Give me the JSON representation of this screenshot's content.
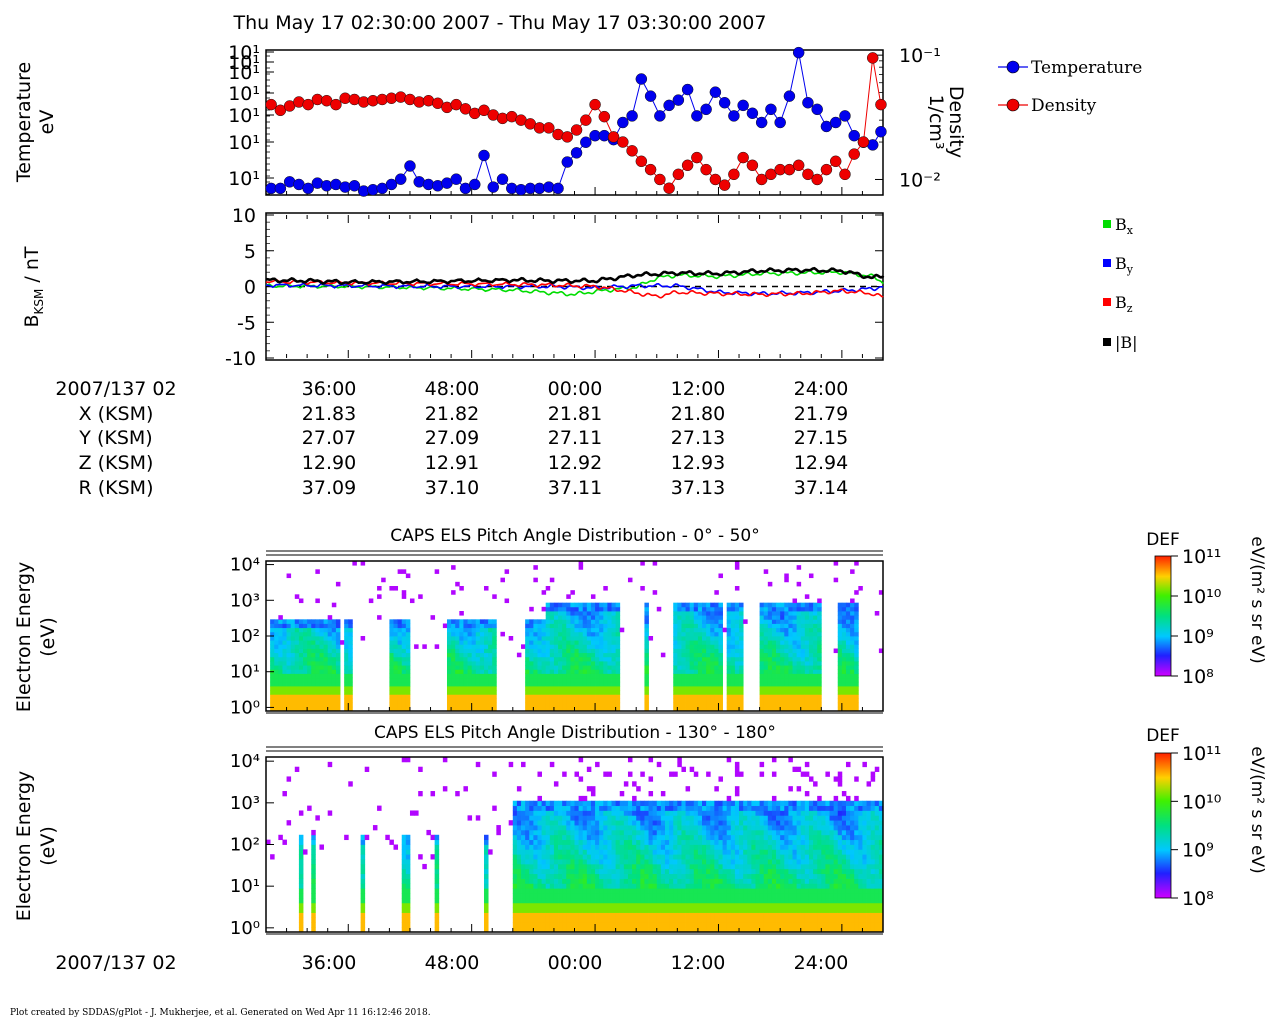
{
  "header": {
    "title": "Thu May 17 02:30:00 2007 - Thu May 17 03:30:00 2007"
  },
  "footer": {
    "credit": "Plot created by SDDAS/gPlot - J. Mukherjee, et al.  Generated on Wed Apr 11 16:12:46 2018."
  },
  "colors": {
    "temperature": "#0000ee",
    "density": "#ee0000",
    "bx": "#00dd00",
    "by": "#0000ff",
    "bz": "#ff0000",
    "bmag": "#000000"
  },
  "chart_data": [
    {
      "id": "moments",
      "type": "line",
      "ylabel_left": [
        "Temperature",
        "eV"
      ],
      "ylabel_right": [
        "Density",
        "1/cm³"
      ],
      "left_ticks": [
        "10¹",
        "10¹",
        "10¹",
        "10¹",
        "10¹",
        "10¹",
        "10¹"
      ],
      "right_ticks": [
        "10⁻¹",
        "10⁻²"
      ],
      "xlim_min": [
        -32,
        28
      ],
      "ylim_temperature": [
        0,
        110
      ],
      "ylim_density": [
        0.0075,
        0.11
      ],
      "series": [
        {
          "name": "Temperature",
          "axis": "left",
          "marker": "circle",
          "x": [
            -31.5,
            -30.6,
            -29.7,
            -28.8,
            -27.9,
            -27.0,
            -26.1,
            -25.2,
            -24.3,
            -23.4,
            -22.5,
            -21.6,
            -20.7,
            -19.8,
            -18.9,
            -18.0,
            -17.1,
            -16.2,
            -15.3,
            -14.4,
            -13.5,
            -12.6,
            -11.7,
            -10.8,
            -9.9,
            -9.0,
            -8.1,
            -7.2,
            -6.3,
            -5.4,
            -4.5,
            -3.6,
            -2.7,
            -1.8,
            -0.9,
            0.0,
            0.9,
            1.8,
            2.7,
            3.6,
            4.5,
            5.4,
            6.3,
            7.2,
            8.1,
            9.0,
            9.9,
            10.8,
            11.7,
            12.6,
            13.5,
            14.4,
            15.3,
            16.2,
            17.1,
            18.0,
            18.9,
            19.8,
            20.7,
            21.6,
            22.5,
            23.4,
            24.3,
            25.2,
            26.1,
            27.0,
            27.8
          ],
          "y": [
            5,
            5,
            10,
            8,
            5,
            9,
            7,
            8,
            6,
            7,
            3,
            4,
            5,
            8,
            12,
            22,
            10,
            8,
            7,
            9,
            12,
            5,
            8,
            30,
            6,
            12,
            5,
            4,
            5,
            5,
            6,
            5,
            25,
            32,
            40,
            45,
            45,
            42,
            55,
            60,
            88,
            75,
            60,
            68,
            72,
            80,
            60,
            65,
            78,
            70,
            60,
            68,
            62,
            55,
            65,
            55,
            75,
            108,
            70,
            65,
            52,
            55,
            60,
            45,
            40,
            38,
            48
          ]
        },
        {
          "name": "Density",
          "axis": "right",
          "marker": "circle",
          "x": [
            -31.5,
            -30.6,
            -29.7,
            -28.8,
            -27.9,
            -27.0,
            -26.1,
            -25.2,
            -24.3,
            -23.4,
            -22.5,
            -21.6,
            -20.7,
            -19.8,
            -18.9,
            -18.0,
            -17.1,
            -16.2,
            -15.3,
            -14.4,
            -13.5,
            -12.6,
            -11.7,
            -10.8,
            -9.9,
            -9.0,
            -8.1,
            -7.2,
            -6.3,
            -5.4,
            -4.5,
            -3.6,
            -2.7,
            -1.8,
            -0.9,
            0.0,
            0.9,
            1.8,
            2.7,
            3.6,
            4.5,
            5.4,
            6.3,
            7.2,
            8.1,
            9.0,
            9.9,
            10.8,
            11.7,
            12.6,
            13.5,
            14.4,
            15.3,
            16.2,
            17.1,
            18.0,
            18.9,
            19.8,
            20.7,
            21.6,
            22.5,
            23.4,
            24.3,
            25.2,
            26.1,
            27.0,
            27.8
          ],
          "y": [
            0.04,
            0.036,
            0.039,
            0.042,
            0.04,
            0.044,
            0.043,
            0.04,
            0.045,
            0.044,
            0.042,
            0.043,
            0.044,
            0.045,
            0.046,
            0.044,
            0.042,
            0.043,
            0.041,
            0.038,
            0.04,
            0.037,
            0.034,
            0.036,
            0.033,
            0.031,
            0.032,
            0.03,
            0.028,
            0.026,
            0.026,
            0.023,
            0.022,
            0.025,
            0.03,
            0.04,
            0.032,
            0.022,
            0.02,
            0.017,
            0.014,
            0.012,
            0.01,
            0.0085,
            0.011,
            0.013,
            0.015,
            0.012,
            0.01,
            0.009,
            0.011,
            0.015,
            0.013,
            0.01,
            0.011,
            0.012,
            0.012,
            0.013,
            0.011,
            0.01,
            0.012,
            0.014,
            0.011,
            0.016,
            0.02,
            0.095,
            0.04
          ]
        }
      ]
    },
    {
      "id": "bfield",
      "type": "line",
      "ylabel": "B_KSM / nT",
      "ylim": [
        -10,
        10
      ],
      "yticks": [
        "10",
        "5",
        "0",
        "-5",
        "-10"
      ],
      "xlim_min": [
        -32,
        28
      ],
      "series": [
        {
          "name": "Bx",
          "x": [
            -32,
            -24,
            -16,
            -8,
            -4,
            -2,
            0,
            4,
            6,
            8,
            12,
            16,
            20,
            24,
            27,
            28
          ],
          "y": [
            0.1,
            0.0,
            -0.2,
            -0.5,
            -0.9,
            -1.1,
            -0.7,
            -0.1,
            1.2,
            1.6,
            1.4,
            1.8,
            1.9,
            2.0,
            1.4,
            0.6
          ]
        },
        {
          "name": "By",
          "x": [
            -32,
            -24,
            -16,
            -8,
            -4,
            0,
            4,
            8,
            12,
            16,
            20,
            24,
            27,
            28
          ],
          "y": [
            0.2,
            0.1,
            0.0,
            0.0,
            0.0,
            -0.2,
            0.1,
            0.1,
            -0.8,
            -1.0,
            -0.9,
            -0.6,
            -0.3,
            0.0
          ]
        },
        {
          "name": "Bz",
          "x": [
            -32,
            -24,
            -16,
            -8,
            -4,
            0,
            2,
            4,
            6,
            8,
            12,
            16,
            20,
            24,
            27,
            28
          ],
          "y": [
            0.7,
            0.5,
            0.4,
            0.3,
            0.2,
            0.0,
            -0.4,
            -0.9,
            -1.4,
            -0.8,
            -1.0,
            -1.1,
            -1.0,
            -0.6,
            -1.0,
            -1.5
          ]
        },
        {
          "name": "|B|",
          "x": [
            -32,
            -28,
            -24,
            -16,
            -8,
            -4,
            0,
            4,
            8,
            12,
            16,
            20,
            24,
            27,
            28
          ],
          "y": [
            0.9,
            0.8,
            0.6,
            0.7,
            0.9,
            0.8,
            0.8,
            1.6,
            1.9,
            1.8,
            2.2,
            2.3,
            2.2,
            1.2,
            1.5
          ]
        }
      ]
    }
  ],
  "legend_top": {
    "temperature": "Temperature",
    "density": "Density"
  },
  "legend_mag": {
    "bx_base": "B",
    "bx_sub": "x",
    "by_base": "B",
    "by_sub": "y",
    "bz_base": "B",
    "bz_sub": "z",
    "bmag": "|B|"
  },
  "b_ylabel": {
    "base": "B",
    "sub": "KSM",
    "rest": " / nT"
  },
  "ephemeris": {
    "date_label": "2007/137 02",
    "tick_times": [
      "36:00",
      "48:00",
      "00:00",
      "12:00",
      "24:00"
    ],
    "rows": [
      {
        "label": "X (KSM)",
        "values": [
          "21.83",
          "21.82",
          "21.81",
          "21.80",
          "21.79"
        ]
      },
      {
        "label": "Y (KSM)",
        "values": [
          "27.07",
          "27.09",
          "27.11",
          "27.13",
          "27.15"
        ]
      },
      {
        "label": "Z (KSM)",
        "values": [
          "12.90",
          "12.91",
          "12.92",
          "12.93",
          "12.94"
        ]
      },
      {
        "label": "R (KSM)",
        "values": [
          "37.09",
          "37.10",
          "37.11",
          "37.13",
          "37.14"
        ]
      }
    ]
  },
  "spectrograms": [
    {
      "title": "CAPS ELS Pitch Angle Distribution - 0° - 50°",
      "ylabel": [
        "Electron Energy",
        "(eV)"
      ],
      "yticks": [
        "10⁴",
        "10³",
        "10²",
        "10¹",
        "10⁰"
      ],
      "colorbar": {
        "title": "DEF",
        "unit": "eV/(m² s sr eV)",
        "ticks": [
          "10¹¹",
          "10¹⁰",
          "10⁹",
          "10⁸"
        ]
      }
    },
    {
      "title": "CAPS ELS Pitch Angle Distribution - 130° - 180°",
      "ylabel": [
        "Electron Energy",
        "(eV)"
      ],
      "yticks": [
        "10⁴",
        "10³",
        "10²",
        "10¹",
        "10⁰"
      ],
      "colorbar": {
        "title": "DEF",
        "unit": "eV/(m² s sr eV)",
        "ticks": [
          "10¹¹",
          "10¹⁰",
          "10⁹",
          "10⁸"
        ]
      }
    }
  ],
  "bottom_axis": {
    "date_label": "2007/137 02",
    "tick_times": [
      "36:00",
      "48:00",
      "00:00",
      "12:00",
      "24:00"
    ]
  }
}
